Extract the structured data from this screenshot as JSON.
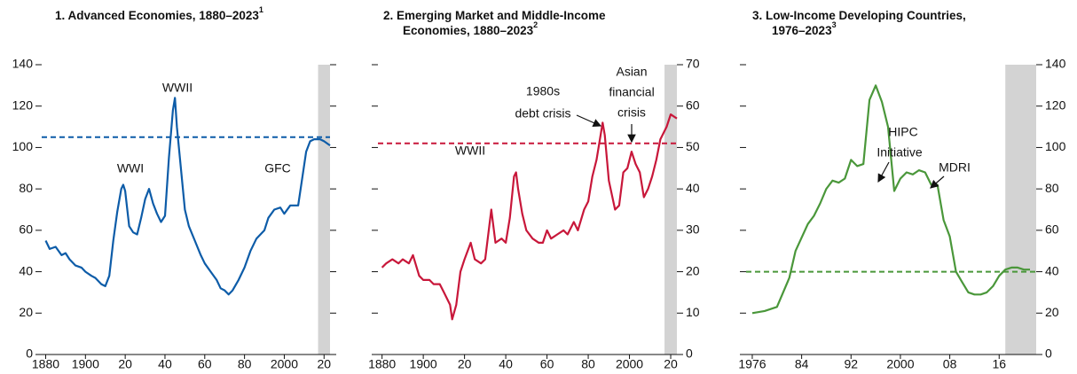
{
  "chart_data": [
    {
      "type": "line",
      "title": [
        "1. Advanced Economies, 1880–2023"
      ],
      "title_note": "1",
      "color": "#0d5ca8",
      "y_axis_side": "left",
      "x": [
        1880,
        1882,
        1885,
        1888,
        1890,
        1892,
        1895,
        1898,
        1900,
        1903,
        1905,
        1908,
        1910,
        1912,
        1914,
        1916,
        1918,
        1919,
        1920,
        1922,
        1924,
        1926,
        1928,
        1930,
        1932,
        1934,
        1936,
        1938,
        1940,
        1942,
        1944,
        1945,
        1946,
        1948,
        1950,
        1952,
        1955,
        1958,
        1960,
        1963,
        1966,
        1968,
        1970,
        1972,
        1974,
        1977,
        1980,
        1983,
        1986,
        1988,
        1990,
        1992,
        1995,
        1998,
        2000,
        2003,
        2007,
        2009,
        2011,
        2013,
        2015,
        2018,
        2020,
        2023
      ],
      "values": [
        55,
        51,
        52,
        48,
        49,
        46,
        43,
        42,
        40,
        38,
        37,
        34,
        33,
        38,
        55,
        69,
        80,
        82,
        79,
        62,
        59,
        58,
        66,
        75,
        80,
        73,
        68,
        64,
        67,
        95,
        118,
        124,
        110,
        90,
        70,
        62,
        55,
        48,
        44,
        40,
        36,
        32,
        31,
        29,
        31,
        36,
        42,
        50,
        56,
        58,
        60,
        66,
        70,
        71,
        68,
        72,
        72,
        85,
        98,
        103,
        104,
        104,
        103,
        101
      ],
      "reference": 105,
      "shade": [
        2017,
        2023
      ],
      "xlim": [
        1878,
        2023
      ],
      "ylim": [
        0,
        140
      ],
      "xticks": [
        1880,
        1900,
        {
          "value": 1920,
          "label": "20"
        },
        {
          "value": 1940,
          "label": "40"
        },
        {
          "value": 1960,
          "label": "60"
        },
        {
          "value": 1980,
          "label": "80"
        },
        2000,
        {
          "value": 2020,
          "label": "20"
        }
      ],
      "yticks": [
        0,
        20,
        40,
        60,
        80,
        100,
        120,
        140
      ],
      "annotations": [
        {
          "lines": [
            "WWI"
          ]
        },
        {
          "lines": [
            "WWII"
          ]
        },
        {
          "lines": [
            "GFC"
          ]
        }
      ]
    },
    {
      "type": "line",
      "title": [
        "2. Emerging Market and Middle-Income",
        "Economies, 1880–2023"
      ],
      "title_note": "2",
      "color": "#c8173a",
      "y_axis_side": "right",
      "x": [
        1880,
        1882,
        1885,
        1888,
        1890,
        1893,
        1895,
        1898,
        1900,
        1903,
        1905,
        1908,
        1910,
        1913,
        1914,
        1916,
        1918,
        1920,
        1923,
        1925,
        1928,
        1930,
        1933,
        1935,
        1938,
        1940,
        1942,
        1944,
        1945,
        1946,
        1948,
        1950,
        1953,
        1956,
        1958,
        1960,
        1962,
        1965,
        1968,
        1970,
        1973,
        1975,
        1978,
        1980,
        1982,
        1984,
        1986,
        1987,
        1988,
        1990,
        1993,
        1995,
        1997,
        1999,
        2001,
        2003,
        2005,
        2007,
        2009,
        2011,
        2013,
        2015,
        2018,
        2020,
        2023
      ],
      "values": [
        21,
        22,
        23,
        22,
        23,
        22,
        24,
        19,
        18,
        18,
        17,
        17,
        15,
        12,
        8.5,
        12,
        20,
        23,
        27,
        23,
        22,
        23,
        35,
        27,
        28,
        27,
        33,
        43,
        44,
        40,
        34,
        30,
        28,
        27,
        27,
        30,
        28,
        29,
        30,
        29,
        32,
        30,
        35,
        37,
        43,
        47,
        53,
        56,
        53,
        42,
        35,
        36,
        44,
        45,
        49,
        46,
        44,
        38,
        40,
        43,
        47,
        52,
        55,
        58,
        57
      ],
      "reference": 51,
      "shade": [
        2017,
        2023
      ],
      "xlim": [
        1878,
        2023
      ],
      "ylim": [
        0,
        70
      ],
      "xticks": [
        1880,
        1900,
        {
          "value": 1920,
          "label": "20"
        },
        {
          "value": 1940,
          "label": "40"
        },
        {
          "value": 1960,
          "label": "60"
        },
        {
          "value": 1980,
          "label": "80"
        },
        2000,
        {
          "value": 2020,
          "label": "20"
        }
      ],
      "yticks": [
        0,
        10,
        20,
        30,
        40,
        50,
        60,
        70
      ],
      "annotations": [
        {
          "lines": [
            "WWII"
          ]
        },
        {
          "lines": [
            "1980s",
            "debt crisis"
          ]
        },
        {
          "lines": [
            "Asian",
            "financial",
            "crisis"
          ]
        }
      ]
    },
    {
      "type": "line",
      "title": [
        "3. Low-Income Developing Countries,",
        "1976–2023"
      ],
      "title_note": "3",
      "color": "#4a973a",
      "y_axis_side": "right",
      "x": [
        1976,
        1978,
        1980,
        1982,
        1983,
        1985,
        1986,
        1987,
        1988,
        1989,
        1990,
        1991,
        1992,
        1993,
        1994,
        1995,
        1996,
        1997,
        1998,
        1999,
        2000,
        2001,
        2002,
        2003,
        2004,
        2005,
        2006,
        2007,
        2008,
        2009,
        2010,
        2011,
        2012,
        2013,
        2014,
        2015,
        2016,
        2017,
        2018,
        2019,
        2020,
        2021
      ],
      "values": [
        20,
        21,
        23,
        37,
        50,
        63,
        67,
        73,
        80,
        84,
        83,
        85,
        94,
        91,
        92,
        123,
        130,
        122,
        110,
        79,
        85,
        88,
        87,
        89,
        88,
        82,
        82,
        65,
        57,
        40,
        35,
        30,
        29,
        29,
        30,
        33,
        38,
        41,
        42,
        42,
        41,
        41
      ],
      "reference": 40,
      "shade": [
        2017,
        2022
      ],
      "xlim": [
        1975,
        2022
      ],
      "ylim": [
        0,
        140
      ],
      "xticks": [
        1976,
        {
          "value": 1984,
          "label": "84"
        },
        {
          "value": 1992,
          "label": "92"
        },
        2000,
        {
          "value": 2008,
          "label": "08"
        },
        {
          "value": 2016,
          "label": "16"
        }
      ],
      "yticks": [
        0,
        20,
        40,
        60,
        80,
        100,
        120,
        140
      ],
      "annotations": [
        {
          "lines": [
            "HIPC",
            "Initiative"
          ]
        },
        {
          "lines": [
            "MDRI"
          ]
        }
      ]
    }
  ]
}
